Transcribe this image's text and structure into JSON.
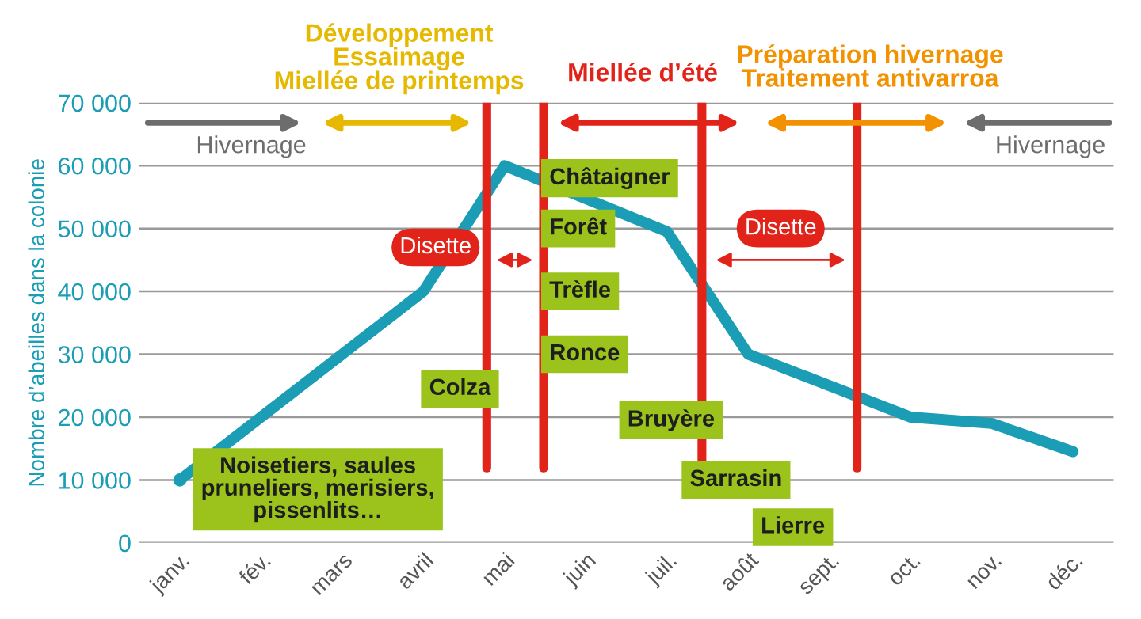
{
  "chart_data": {
    "type": "line",
    "ylabel": "Nombre d’abeilles dans la colonie",
    "categories": [
      "janv.",
      "fév.",
      "mars",
      "avril",
      "mai",
      "juin",
      "juil.",
      "août",
      "sept.",
      "oct.",
      "nov.",
      "déc."
    ],
    "ylim": [
      0,
      70000
    ],
    "yticks": [
      0,
      {
        "value": 10000,
        "label": "10 000"
      },
      {
        "value": 20000,
        "label": "20 000"
      },
      {
        "value": 30000,
        "label": "30 000"
      },
      {
        "value": 40000,
        "label": "40 000"
      },
      {
        "value": 50000,
        "label": "50 000"
      },
      {
        "value": 60000,
        "label": "60 000"
      },
      {
        "value": 70000,
        "label": "70 000"
      }
    ],
    "grid": "y",
    "legend": false,
    "marker": "none",
    "line_style": "solid",
    "series": [
      {
        "color": "#1a9db5",
        "values": [
          10000,
          null,
          null,
          40000,
          60000,
          null,
          49500,
          30000,
          25000,
          20000,
          19000,
          14500
        ]
      }
    ],
    "annotations": [
      "Développement\nEssaimage\nMiellée de printemps",
      "Miellée d’été",
      "Préparation hivernage\nTraitement antivarroa",
      "Hivernage",
      "Hivernage",
      "Disette",
      "Disette",
      "Noisetiers, saules\npruneliers, merisiers,\npissenlits…",
      "Colza",
      "Châtaigner",
      "Forêt",
      "Trèfle",
      "Ronce",
      "Bruyère",
      "Sarrasin",
      "Lierre"
    ]
  }
}
